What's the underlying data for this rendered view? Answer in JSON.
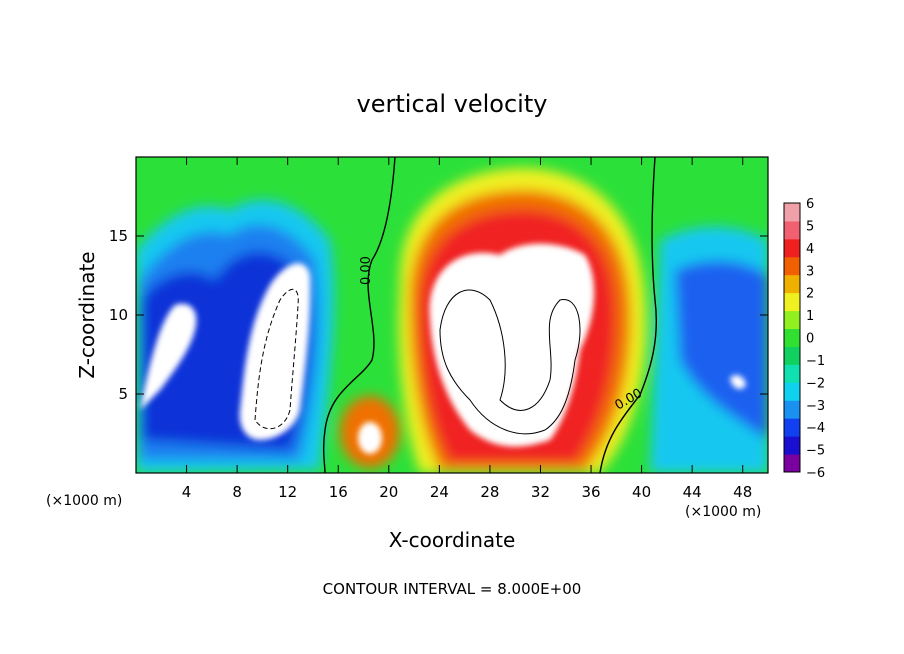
{
  "chart_data": {
    "type": "heatmap",
    "title": "vertical velocity",
    "xlabel": "X-coordinate",
    "ylabel": "Z-coordinate",
    "x_unit_label_left": "(×1000 m)",
    "x_unit_label_right": "(×1000 m)",
    "footer": "CONTOUR INTERVAL = 8.000E+00",
    "xlim": [
      0,
      50
    ],
    "ylim": [
      0,
      20
    ],
    "x_ticks": [
      4,
      8,
      12,
      16,
      20,
      24,
      28,
      32,
      36,
      40,
      44,
      48
    ],
    "y_ticks": [
      5,
      10,
      15
    ],
    "colorbar": {
      "ticks": [
        "6",
        "5",
        "4",
        "3",
        "2",
        "1",
        "0",
        "−1",
        "−2",
        "−3",
        "−4",
        "−5",
        "−6"
      ],
      "range": [
        -6,
        6
      ],
      "colors": [
        "#7a00a0",
        "#1a0fd0",
        "#1040f0",
        "#1a90f0",
        "#10d0f0",
        "#10e0b0",
        "#10d060",
        "#30e030",
        "#90f020",
        "#f0f020",
        "#f0b000",
        "#f06000",
        "#f02020",
        "#f06070",
        "#f0a0a8"
      ]
    },
    "contour_labels": [
      "0.00",
      "0.00"
    ],
    "features": [
      {
        "name": "downdraft-left",
        "x": 3,
        "z": 8,
        "sign": "negative"
      },
      {
        "name": "downdraft-center-left",
        "x": 11,
        "z": 9,
        "sign": "negative"
      },
      {
        "name": "updraft-small",
        "x": 18.5,
        "z": 2,
        "sign": "positive"
      },
      {
        "name": "updraft-main",
        "x": 30,
        "z": 9,
        "sign": "positive"
      },
      {
        "name": "downdraft-right",
        "x": 46,
        "z": 6,
        "sign": "negative"
      }
    ]
  }
}
